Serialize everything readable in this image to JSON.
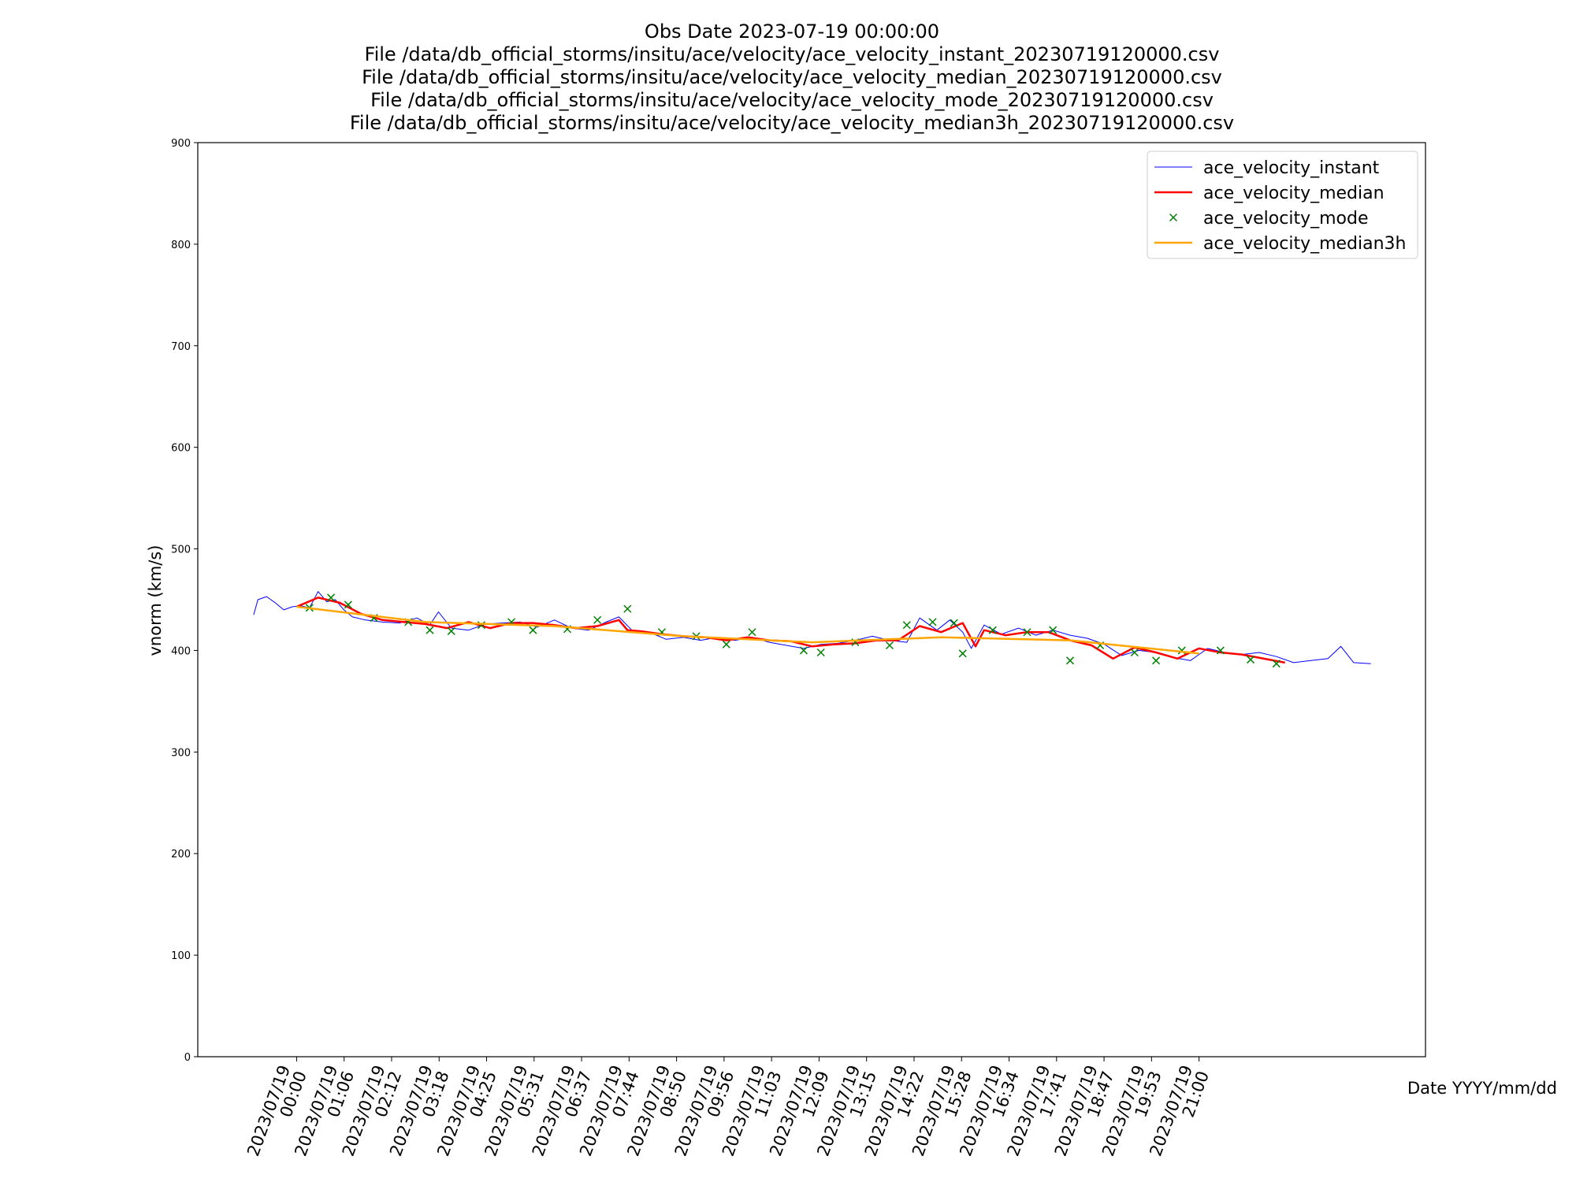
{
  "chart_data": {
    "type": "line",
    "title": [
      "Obs Date 2023-07-19 00:00:00",
      "File /data/db_official_storms/insitu/ace/velocity/ace_velocity_instant_20230719120000.csv",
      "File /data/db_official_storms/insitu/ace/velocity/ace_velocity_median_20230719120000.csv",
      "File /data/db_official_storms/insitu/ace/velocity/ace_velocity_mode_20230719120000.csv",
      "File /data/db_official_storms/insitu/ace/velocity/ace_velocity_median3h_20230719120000.csv"
    ],
    "y_label": "vnorm (km/s)",
    "x_label": "Date YYYY/mm/dd",
    "ylim": [
      0,
      900
    ],
    "yticks": [
      0,
      100,
      200,
      300,
      400,
      500,
      600,
      700,
      800,
      900
    ],
    "xlim": [
      -2.3,
      26.27
    ],
    "xticks": [
      {
        "value": 0,
        "label": "2023/07/19 00:00"
      },
      {
        "value": 1.1053,
        "label": "2023/07/19 01:06"
      },
      {
        "value": 2.2105,
        "label": "2023/07/19 02:12"
      },
      {
        "value": 3.3158,
        "label": "2023/07/19 03:18"
      },
      {
        "value": 4.4211,
        "label": "2023/07/19 04:25"
      },
      {
        "value": 5.5263,
        "label": "2023/07/19 05:31"
      },
      {
        "value": 6.6316,
        "label": "2023/07/19 06:37"
      },
      {
        "value": 7.7368,
        "label": "2023/07/19 07:44"
      },
      {
        "value": 8.8421,
        "label": "2023/07/19 08:50"
      },
      {
        "value": 9.9474,
        "label": "2023/07/19 09:56"
      },
      {
        "value": 11.0526,
        "label": "2023/07/19 11:03"
      },
      {
        "value": 12.1579,
        "label": "2023/07/19 12:09"
      },
      {
        "value": 13.2632,
        "label": "2023/07/19 13:15"
      },
      {
        "value": 14.3684,
        "label": "2023/07/19 14:22"
      },
      {
        "value": 15.4737,
        "label": "2023/07/19 15:28"
      },
      {
        "value": 16.5789,
        "label": "2023/07/19 16:34"
      },
      {
        "value": 17.6842,
        "label": "2023/07/19 17:41"
      },
      {
        "value": 18.7895,
        "label": "2023/07/19 18:47"
      },
      {
        "value": 19.8947,
        "label": "2023/07/19 19:53"
      },
      {
        "value": 21,
        "label": "2023/07/19 21:00"
      }
    ],
    "legend": "upper right",
    "series": [
      {
        "name": "ace_velocity_instant",
        "color": "#0000ff",
        "style": "line",
        "x": [
          -1.0,
          -0.9,
          -0.7,
          -0.5,
          -0.3,
          -0.1,
          0.1,
          0.3,
          0.5,
          0.7,
          0.9,
          1.1,
          1.3,
          1.6,
          2.0,
          2.4,
          2.8,
          3.1,
          3.3,
          3.6,
          4.0,
          4.4,
          4.8,
          5.2,
          5.6,
          6.0,
          6.4,
          6.8,
          7.2,
          7.5,
          7.8,
          8.2,
          8.6,
          9.0,
          9.4,
          9.8,
          10.2,
          10.6,
          11.0,
          11.8,
          12.2,
          12.6,
          13.0,
          13.4,
          13.8,
          14.2,
          14.5,
          14.9,
          15.2,
          15.5,
          15.7,
          16.0,
          16.4,
          16.8,
          17.2,
          17.6,
          18.0,
          18.4,
          18.8,
          19.2,
          19.6,
          20.0,
          20.4,
          20.8,
          21.2,
          21.6,
          22.0,
          22.4,
          22.8,
          23.2,
          23.6,
          24.0,
          24.3,
          24.6,
          25.0
        ],
        "values": [
          435,
          450,
          453,
          447,
          440,
          443,
          444,
          442,
          458,
          448,
          450,
          440,
          433,
          430,
          428,
          427,
          432,
          425,
          438,
          422,
          420,
          426,
          427,
          428,
          423,
          430,
          422,
          420,
          428,
          433,
          420,
          418,
          411,
          413,
          410,
          413,
          410,
          413,
          408,
          402,
          406,
          407,
          410,
          414,
          410,
          408,
          432,
          420,
          430,
          418,
          402,
          425,
          416,
          422,
          415,
          420,
          415,
          412,
          406,
          395,
          400,
          398,
          393,
          390,
          402,
          398,
          396,
          398,
          394,
          388,
          390,
          392,
          404,
          388,
          387
        ]
      },
      {
        "name": "ace_velocity_median",
        "color": "#ff0000",
        "style": "line",
        "x": [
          0,
          0.5,
          1,
          1.5,
          2,
          2.5,
          3,
          3.5,
          4,
          4.5,
          5,
          5.5,
          6,
          6.5,
          7,
          7.5,
          7.7,
          8,
          8.5,
          9,
          9.5,
          10,
          10.5,
          11,
          11.5,
          12,
          12.5,
          13,
          13.5,
          14,
          14.5,
          15,
          15.5,
          15.8,
          16,
          16.5,
          17,
          17.5,
          18,
          18.5,
          19,
          19.5,
          20,
          20.5,
          21,
          21.5,
          22,
          23.0
        ],
        "values": [
          443,
          452,
          447,
          436,
          430,
          428,
          426,
          422,
          428,
          422,
          427,
          427,
          425,
          422,
          424,
          430,
          420,
          419,
          416,
          414,
          413,
          410,
          413,
          410,
          409,
          404,
          406,
          407,
          410,
          410,
          424,
          418,
          427,
          404,
          420,
          415,
          418,
          418,
          410,
          405,
          392,
          403,
          398,
          392,
          402,
          398,
          396,
          388
        ]
      },
      {
        "name": "ace_velocity_mode",
        "color": "#008000",
        "style": "marker",
        "x": [
          0.3,
          0.8,
          1.2,
          1.8,
          2.6,
          3.1,
          3.6,
          4.3,
          5.0,
          5.5,
          6.3,
          7.0,
          7.7,
          8.5,
          9.3,
          10.0,
          10.6,
          11.8,
          12.2,
          13.0,
          13.8,
          14.2,
          14.8,
          15.3,
          15.5,
          16.2,
          17.0,
          17.6,
          18.0,
          18.7,
          19.5,
          20.0,
          20.6,
          21.5,
          22.2,
          22.8
        ],
        "values": [
          442,
          452,
          445,
          432,
          428,
          420,
          419,
          425,
          428,
          420,
          421,
          430,
          441,
          418,
          414,
          406,
          418,
          400,
          398,
          408,
          405,
          425,
          428,
          427,
          397,
          420,
          418,
          420,
          390,
          405,
          398,
          390,
          400,
          400,
          391,
          387
        ]
      },
      {
        "name": "ace_velocity_median3h",
        "color": "#ffa500",
        "style": "line",
        "x": [
          0,
          3,
          6,
          9,
          12,
          15,
          18,
          21
        ],
        "values": [
          443,
          428,
          424,
          414,
          408,
          413,
          410,
          397
        ]
      }
    ]
  }
}
